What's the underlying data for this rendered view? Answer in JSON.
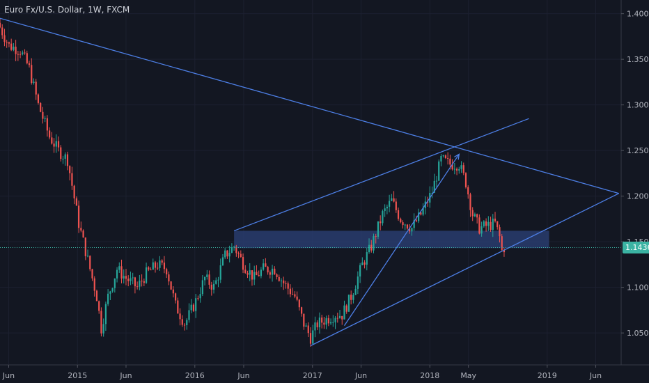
{
  "header": {
    "title": "Euro Fx/U.S. Dollar, 1W, FXCM"
  },
  "chart_data": {
    "type": "candlestick",
    "title": "Euro Fx/U.S. Dollar, 1W, FXCM",
    "symbol": "Euro Fx/U.S. Dollar",
    "interval": "1W",
    "source": "FXCM",
    "ylim": [
      1.015,
      1.415
    ],
    "y_ticks": [
      "1.40000",
      "1.35000",
      "1.30000",
      "1.25000",
      "1.20000",
      "1.15000",
      "1.10000",
      "1.05000"
    ],
    "x_ticks": [
      "Jun",
      "2015",
      "Jun",
      "2016",
      "Jun",
      "2017",
      "Jun",
      "2018",
      "May",
      "2019",
      "Jun"
    ],
    "last_price": "1.14362",
    "colors": {
      "up": "#26a69a",
      "down": "#ef5350",
      "line": "#4d7fe6",
      "zone": "#2b3f73",
      "price_line": "#3bb3a3",
      "background": "#131722"
    },
    "path_points": [
      [
        "2014-05-05",
        1.385
      ],
      [
        "2014-06-02",
        1.365
      ],
      [
        "2014-07-07",
        1.36
      ],
      [
        "2014-08-04",
        1.34
      ],
      [
        "2014-09-01",
        1.3
      ],
      [
        "2014-10-06",
        1.265
      ],
      [
        "2014-11-03",
        1.25
      ],
      [
        "2014-12-01",
        1.24
      ],
      [
        "2015-01-05",
        1.17
      ],
      [
        "2015-02-02",
        1.13
      ],
      [
        "2015-03-02",
        1.09
      ],
      [
        "2015-03-16",
        1.055
      ],
      [
        "2015-04-06",
        1.09
      ],
      [
        "2015-05-04",
        1.12
      ],
      [
        "2015-06-01",
        1.11
      ],
      [
        "2015-07-06",
        1.1
      ],
      [
        "2015-08-03",
        1.115
      ],
      [
        "2015-09-07",
        1.125
      ],
      [
        "2015-10-05",
        1.12
      ],
      [
        "2015-11-02",
        1.08
      ],
      [
        "2015-12-01",
        1.06
      ],
      [
        "2016-01-04",
        1.085
      ],
      [
        "2016-02-01",
        1.11
      ],
      [
        "2016-03-01",
        1.1
      ],
      [
        "2016-04-04",
        1.135
      ],
      [
        "2016-05-02",
        1.145
      ],
      [
        "2016-06-01",
        1.125
      ],
      [
        "2016-07-04",
        1.11
      ],
      [
        "2016-08-01",
        1.12
      ],
      [
        "2016-09-05",
        1.12
      ],
      [
        "2016-10-03",
        1.105
      ],
      [
        "2016-11-07",
        1.09
      ],
      [
        "2016-12-05",
        1.06
      ],
      [
        "2016-12-26",
        1.045
      ],
      [
        "2017-01-16",
        1.06
      ],
      [
        "2017-02-13",
        1.065
      ],
      [
        "2017-03-13",
        1.07
      ],
      [
        "2017-04-03",
        1.07
      ],
      [
        "2017-05-01",
        1.09
      ],
      [
        "2017-06-05",
        1.125
      ],
      [
        "2017-07-03",
        1.145
      ],
      [
        "2017-08-07",
        1.18
      ],
      [
        "2017-09-04",
        1.195
      ],
      [
        "2017-10-02",
        1.175
      ],
      [
        "2017-11-06",
        1.165
      ],
      [
        "2017-12-04",
        1.18
      ],
      [
        "2018-01-08",
        1.205
      ],
      [
        "2018-02-05",
        1.24
      ],
      [
        "2018-03-05",
        1.235
      ],
      [
        "2018-04-02",
        1.235
      ],
      [
        "2018-04-23",
        1.215
      ],
      [
        "2018-05-14",
        1.18
      ],
      [
        "2018-06-04",
        1.165
      ],
      [
        "2018-07-02",
        1.168
      ],
      [
        "2018-07-23",
        1.17
      ],
      [
        "2018-08-06",
        1.155
      ],
      [
        "2018-08-13",
        1.14
      ],
      [
        "2018-08-20",
        1.1436
      ]
    ],
    "annotations": [
      {
        "type": "trendline",
        "from": [
          "2014-05-05",
          1.395
        ],
        "to": [
          "2019-08-12",
          1.203
        ]
      },
      {
        "type": "trendline",
        "from": [
          "2016-12-26",
          1.036
        ],
        "to": [
          "2019-08-12",
          1.203
        ]
      },
      {
        "type": "trendline",
        "from": [
          "2016-05-02",
          1.162
        ],
        "to": [
          "2018-11-05",
          1.285
        ]
      },
      {
        "type": "trendline",
        "from": [
          "2017-04-10",
          1.058
        ],
        "to": [
          "2018-04-02",
          1.246
        ]
      },
      {
        "type": "zone",
        "from": [
          "2016-05-02",
          1.162
        ],
        "to": [
          "2019-01-07",
          1.143
        ]
      },
      {
        "type": "price_line",
        "value": 1.14362
      }
    ]
  }
}
